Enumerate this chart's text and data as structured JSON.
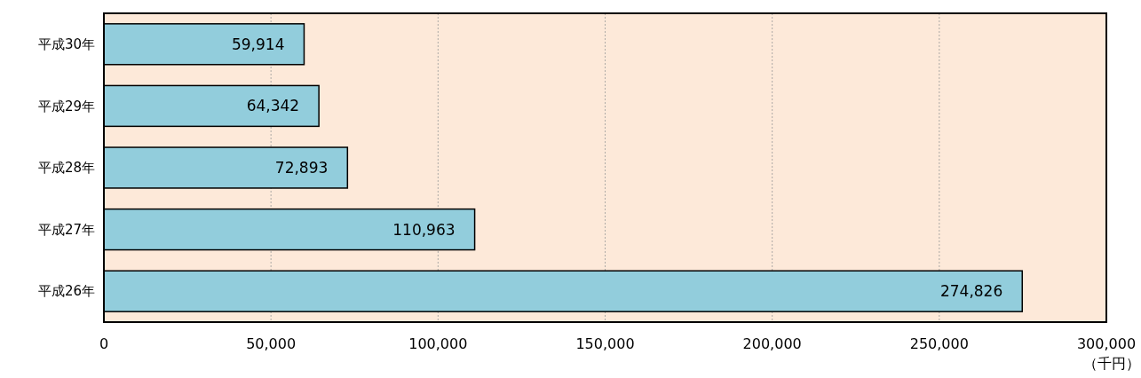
{
  "chart_data": {
    "type": "bar",
    "orientation": "horizontal",
    "xlabel": "（千円）",
    "categories": [
      "平成30年",
      "平成29年",
      "平成28年",
      "平成27年",
      "平成26年"
    ],
    "values": [
      59914,
      64342,
      72893,
      110963,
      274826
    ],
    "value_labels": [
      "59,914",
      "64,342",
      "72,893",
      "110,963",
      "274,826"
    ],
    "color": "#92cddc",
    "xlim": [
      0,
      300000
    ],
    "xticks": [
      0,
      {
        "value": 50000,
        "label": "50,000"
      },
      {
        "value": 100000,
        "label": "100,000"
      },
      {
        "value": 150000,
        "label": "150,000"
      },
      {
        "value": 200000,
        "label": "200,000"
      },
      {
        "value": 250000,
        "label": "250,000"
      },
      {
        "value": 300000,
        "label": "300,000"
      }
    ],
    "grid": "x"
  }
}
